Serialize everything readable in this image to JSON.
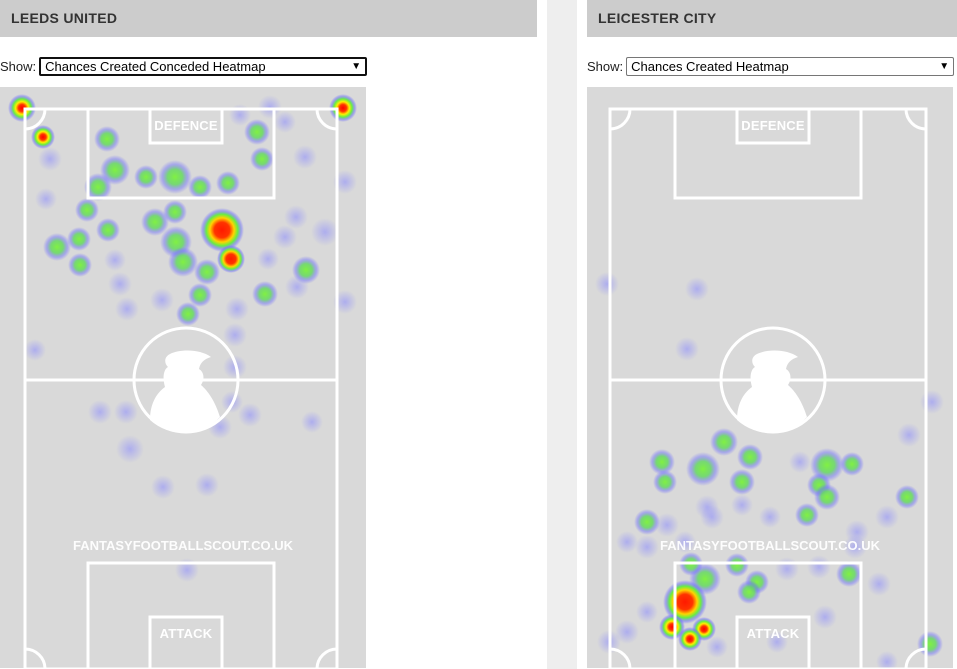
{
  "left": {
    "team_name": "LEEDS UNITED",
    "show_label": "Show:",
    "selected_option": "Chances Created Conceded Heatmap",
    "zone_top": "DEFENCE",
    "zone_bottom": "ATTACK",
    "watermark": "FANTASYFOOTBALLSCOUT.CO.UK"
  },
  "right": {
    "team_name": "LEICESTER CITY",
    "show_label": "Show:",
    "selected_option": "Chances Created Heatmap",
    "zone_top": "DEFENCE",
    "zone_bottom": "ATTACK",
    "watermark": "FANTASYFOOTBALLSCOUT.CO.UK"
  },
  "colors": {
    "header_bg": "#cccccc",
    "pitch_bg": "#d9d9d9",
    "pitch_lines": "#ffffff",
    "heat_low": "#8080ff",
    "heat_mid": "#66ff33",
    "heat_high": "#ff0000"
  }
}
